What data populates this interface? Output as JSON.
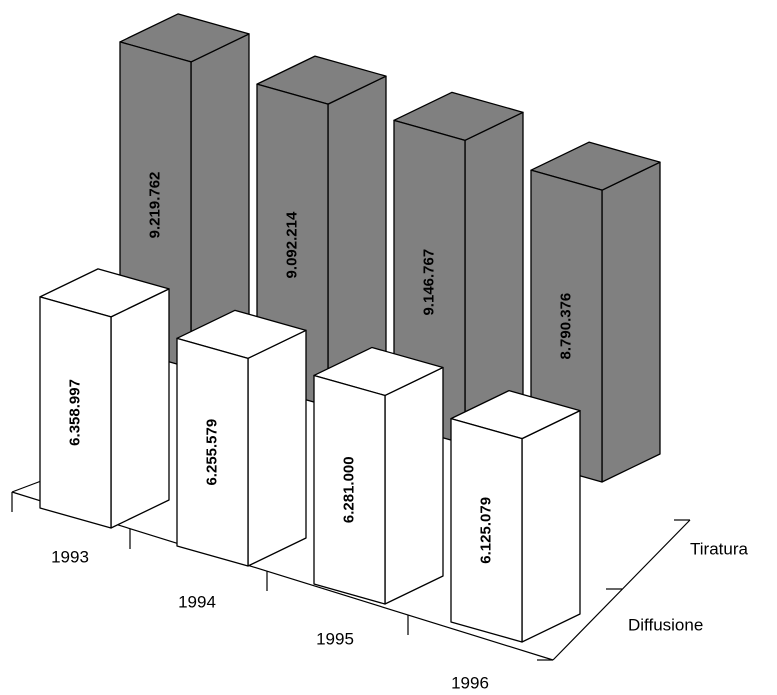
{
  "chart_data": {
    "type": "bar3d",
    "categories": [
      "1993",
      "1994",
      "1995",
      "1996"
    ],
    "series": [
      {
        "name": "Tiratura",
        "color": "#808080",
        "values": [
          9219762,
          9092214,
          9146767,
          8790376
        ],
        "value_labels": [
          "9.219.762",
          "9.092.214",
          "9.146.767",
          "8.790.376"
        ]
      },
      {
        "name": "Diffusione",
        "color": "#ffffff",
        "values": [
          6358997,
          6255579,
          6281000,
          6125079
        ],
        "value_labels": [
          "6.358.997",
          "6.255.579",
          "6.281.000",
          "6.125.079"
        ]
      }
    ]
  }
}
